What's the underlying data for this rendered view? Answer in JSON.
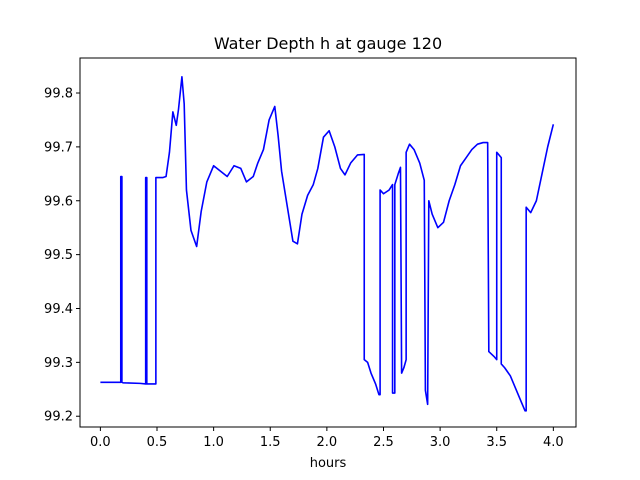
{
  "chart_data": {
    "type": "line",
    "title": "Water Depth h at gauge 120",
    "xlabel": "hours",
    "ylabel": "",
    "xlim": [
      -0.18,
      4.2
    ],
    "ylim": [
      99.18,
      99.865
    ],
    "xticks": [
      0.0,
      0.5,
      1.0,
      1.5,
      2.0,
      2.5,
      3.0,
      3.5,
      4.0
    ],
    "xtick_labels": [
      "0.0",
      "0.5",
      "1.0",
      "1.5",
      "2.0",
      "2.5",
      "3.0",
      "3.5",
      "4.0"
    ],
    "yticks": [
      99.2,
      99.3,
      99.4,
      99.5,
      99.6,
      99.7,
      99.8
    ],
    "ytick_labels": [
      "99.2",
      "99.3",
      "99.4",
      "99.5",
      "99.6",
      "99.7",
      "99.8"
    ],
    "grid": false,
    "series": [
      {
        "color": "#0000ff",
        "x": [
          0.0,
          0.17,
          0.18,
          0.18,
          0.19,
          0.19,
          0.2,
          0.35,
          0.4,
          0.4,
          0.41,
          0.41,
          0.42,
          0.48,
          0.49,
          0.49,
          0.55,
          0.58,
          0.61,
          0.64,
          0.67,
          0.69,
          0.72,
          0.74,
          0.76,
          0.8,
          0.85,
          0.89,
          0.94,
          1.0,
          1.06,
          1.12,
          1.18,
          1.24,
          1.29,
          1.35,
          1.39,
          1.44,
          1.49,
          1.54,
          1.57,
          1.6,
          1.65,
          1.7,
          1.74,
          1.78,
          1.83,
          1.88,
          1.92,
          1.97,
          2.02,
          2.07,
          2.12,
          2.16,
          2.21,
          2.27,
          2.33,
          2.33,
          2.36,
          2.39,
          2.43,
          2.46,
          2.47,
          2.47,
          2.5,
          2.55,
          2.58,
          2.58,
          2.6,
          2.6,
          2.63,
          2.65,
          2.66,
          2.68,
          2.7,
          2.7,
          2.73,
          2.77,
          2.82,
          2.86,
          2.87,
          2.88,
          2.89,
          2.9,
          2.93,
          2.98,
          3.03,
          3.08,
          3.13,
          3.18,
          3.23,
          3.28,
          3.33,
          3.38,
          3.42,
          3.43,
          3.43,
          3.48,
          3.5,
          3.5,
          3.54,
          3.54,
          3.57,
          3.62,
          3.67,
          3.72,
          3.75,
          3.76,
          3.76,
          3.8,
          3.85,
          3.9,
          3.95,
          4.0
        ],
        "y": [
          99.263,
          99.263,
          99.263,
          99.645,
          99.645,
          99.263,
          99.262,
          99.261,
          99.26,
          99.643,
          99.643,
          99.26,
          99.26,
          99.26,
          99.26,
          99.643,
          99.643,
          99.645,
          99.69,
          99.765,
          99.74,
          99.77,
          99.83,
          99.78,
          99.62,
          99.545,
          99.515,
          99.58,
          99.635,
          99.665,
          99.655,
          99.645,
          99.665,
          99.66,
          99.635,
          99.645,
          99.67,
          99.695,
          99.75,
          99.775,
          99.72,
          99.655,
          99.59,
          99.525,
          99.52,
          99.575,
          99.61,
          99.63,
          99.66,
          99.718,
          99.73,
          99.7,
          99.66,
          99.648,
          99.67,
          99.685,
          99.686,
          99.305,
          99.3,
          99.28,
          99.26,
          99.24,
          99.24,
          99.62,
          99.613,
          99.62,
          99.63,
          99.243,
          99.243,
          99.63,
          99.65,
          99.662,
          99.28,
          99.29,
          99.305,
          99.69,
          99.705,
          99.695,
          99.67,
          99.638,
          99.248,
          99.235,
          99.222,
          99.6,
          99.575,
          99.55,
          99.56,
          99.6,
          99.63,
          99.665,
          99.68,
          99.695,
          99.705,
          99.708,
          99.708,
          99.325,
          99.32,
          99.31,
          99.305,
          99.69,
          99.68,
          99.297,
          99.29,
          99.275,
          99.25,
          99.225,
          99.21,
          99.21,
          99.588,
          99.578,
          99.6,
          99.65,
          99.7,
          99.742
        ]
      }
    ]
  }
}
